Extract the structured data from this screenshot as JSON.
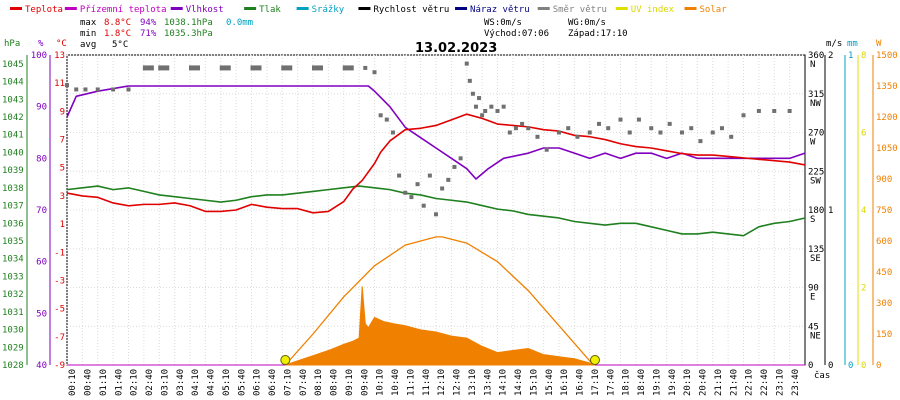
{
  "chart_data": {
    "type": "line",
    "date": "13.02.2023",
    "legend": [
      {
        "id": "temp",
        "label": "Teplota",
        "color": "#e00000"
      },
      {
        "id": "dew",
        "label": "Přízemní teplota",
        "color": "#c000c0"
      },
      {
        "id": "hum",
        "label": "Vlhkost",
        "color": "#8000c0"
      },
      {
        "id": "press",
        "label": "Tlak",
        "color": "#208020"
      },
      {
        "id": "rain",
        "label": "Srážky",
        "color": "#00a0c0"
      },
      {
        "id": "wspd",
        "label": "Rychlost větru",
        "color": "#000000"
      },
      {
        "id": "gust",
        "label": "Náraz větru",
        "color": "#000080"
      },
      {
        "id": "wdir",
        "label": "Směr větru",
        "color": "#808080"
      },
      {
        "id": "uv",
        "label": "UV index",
        "color": "#e0e000"
      },
      {
        "id": "solar",
        "label": "Solar",
        "color": "#f08000"
      }
    ],
    "stats": {
      "max": {
        "label": "max",
        "temp": "8.8°C",
        "hum": "94%",
        "press": "1038.1hPa",
        "rain": "0.0mm"
      },
      "min": {
        "label": "min",
        "temp": "1.8°C",
        "hum": "71%",
        "press": "1035.3hPa"
      },
      "avg": {
        "label": "avg",
        "temp": "5°C"
      }
    },
    "wind_info": {
      "ws": "WS:0m/s",
      "wg": "WG:0m/s",
      "sunrise": "Východ:07:06",
      "sunset": "Západ:17:10"
    },
    "axis_titles": {
      "hpa": "hPa",
      "pct": "%",
      "degc": "°C",
      "ms": "m/s",
      "mm": "mm",
      "w": "W",
      "cas": "čas"
    },
    "axes": {
      "hpa": {
        "ticks": [
          "1045",
          "1044",
          "1043",
          "1042",
          "1041",
          "1040",
          "1039",
          "1038",
          "1037",
          "1036",
          "1035",
          "1034",
          "1033",
          "1032",
          "1031",
          "1030",
          "1029",
          "1028"
        ],
        "range": [
          1028,
          1045.5
        ]
      },
      "pct": {
        "ticks": [
          "100",
          "90",
          "80",
          "70",
          "60",
          "50",
          "40"
        ],
        "range": [
          40,
          100
        ]
      },
      "degc": {
        "ticks": [
          "13",
          "11",
          "9",
          "7",
          "5",
          "3",
          "1",
          "-1",
          "-3",
          "-5",
          "-7",
          "-9"
        ],
        "range": [
          -9,
          13
        ]
      },
      "dir": {
        "ticks": [
          [
            "360",
            "N"
          ],
          [
            "315",
            "NW"
          ],
          [
            "270",
            "W"
          ],
          [
            "225",
            "SW"
          ],
          [
            "180",
            "S"
          ],
          [
            "135",
            "SE"
          ],
          [
            "90",
            "E"
          ],
          [
            "45",
            "NE"
          ],
          [
            "0",
            ""
          ]
        ],
        "range": [
          0,
          360
        ]
      },
      "ms": {
        "ticks": [
          "2",
          "1",
          "0"
        ],
        "range": [
          0,
          2
        ]
      },
      "mm": {
        "ticks": [
          "1",
          "0"
        ],
        "range": [
          0,
          1
        ]
      },
      "uv": {
        "ticks": [
          "8",
          "6",
          "4",
          "2",
          "0"
        ],
        "range": [
          0,
          8
        ]
      },
      "solar": {
        "ticks": [
          "1500",
          "1350",
          "1200",
          "1050",
          "900",
          "750",
          "600",
          "450",
          "300",
          "150",
          "0"
        ],
        "range": [
          0,
          1500
        ]
      }
    },
    "x_labels": [
      "00:10",
      "00:40",
      "01:10",
      "01:40",
      "02:10",
      "02:40",
      "03:10",
      "03:40",
      "04:10",
      "04:40",
      "05:10",
      "05:40",
      "06:10",
      "06:40",
      "07:10",
      "07:40",
      "08:10",
      "08:40",
      "09:10",
      "09:40",
      "10:10",
      "10:40",
      "11:10",
      "11:40",
      "12:10",
      "12:40",
      "13:10",
      "13:40",
      "14:10",
      "14:40",
      "15:10",
      "15:40",
      "16:10",
      "16:40",
      "17:10",
      "17:40",
      "18:10",
      "18:40",
      "19:10",
      "19:40",
      "20:10",
      "20:40",
      "21:10",
      "21:40",
      "22:10",
      "22:40",
      "23:10",
      "23:40"
    ],
    "x_range_hours": [
      0,
      24
    ],
    "sun_markers": [
      7.1,
      17.17
    ],
    "series": {
      "temp": {
        "x": [
          0,
          0.5,
          1,
          1.5,
          2,
          2.5,
          3,
          3.5,
          4,
          4.5,
          5,
          5.5,
          6,
          6.5,
          7,
          7.5,
          8,
          8.5,
          9,
          9.3,
          9.6,
          10,
          10.2,
          10.5,
          11,
          11.5,
          12,
          12.5,
          13,
          13.5,
          14,
          14.5,
          15,
          15.5,
          16,
          16.5,
          17,
          17.5,
          18,
          18.5,
          19,
          19.5,
          20,
          20.5,
          21,
          21.5,
          22,
          22.5,
          23,
          23.5,
          24
        ],
        "y": [
          3.2,
          3.0,
          2.9,
          2.5,
          2.3,
          2.4,
          2.4,
          2.5,
          2.3,
          1.9,
          1.9,
          2.0,
          2.4,
          2.2,
          2.1,
          2.1,
          1.8,
          1.9,
          2.6,
          3.5,
          4.1,
          5.3,
          6.1,
          6.9,
          7.7,
          7.8,
          8.0,
          8.4,
          8.8,
          8.5,
          8.1,
          8.0,
          7.9,
          7.7,
          7.6,
          7.3,
          7.2,
          7.0,
          6.7,
          6.5,
          6.4,
          6.2,
          6.0,
          5.9,
          5.9,
          5.8,
          5.7,
          5.6,
          5.5,
          5.4,
          5.2
        ]
      },
      "hum": {
        "x": [
          0,
          0.3,
          1,
          2,
          2.5,
          4,
          6,
          8,
          9,
          9.8,
          10,
          10.5,
          11,
          11.5,
          12,
          12.5,
          13,
          13.3,
          13.7,
          14.2,
          15,
          15.5,
          16,
          16.5,
          17,
          17.5,
          18,
          18.5,
          19,
          19.5,
          20,
          20.5,
          21,
          21.5,
          22,
          23,
          23.5,
          24
        ],
        "y": [
          88,
          92,
          93,
          94,
          94,
          94,
          94,
          94,
          94,
          94,
          93,
          90,
          86,
          84,
          82,
          80,
          78,
          76,
          78,
          80,
          81,
          82,
          82,
          81,
          80,
          81,
          80,
          81,
          81,
          80,
          81,
          80,
          80,
          80,
          80,
          80,
          80,
          81
        ]
      },
      "press": {
        "x": [
          0,
          0.5,
          1,
          1.5,
          2,
          2.5,
          3,
          3.5,
          4,
          4.5,
          5,
          5.5,
          6,
          6.5,
          7,
          7.5,
          8,
          8.5,
          9,
          9.5,
          10,
          10.5,
          11,
          11.5,
          12,
          12.5,
          13,
          13.5,
          14,
          14.5,
          15,
          15.5,
          16,
          16.5,
          17,
          17.5,
          18,
          18.5,
          19,
          19.5,
          20,
          20.5,
          21,
          21.5,
          22,
          22.5,
          23,
          23.5,
          24
        ],
        "y": [
          1037.9,
          1038.0,
          1038.1,
          1037.9,
          1038.0,
          1037.8,
          1037.6,
          1037.5,
          1037.4,
          1037.3,
          1037.2,
          1037.3,
          1037.5,
          1037.6,
          1037.6,
          1037.7,
          1037.8,
          1037.9,
          1038.0,
          1038.1,
          1038.0,
          1037.9,
          1037.7,
          1037.6,
          1037.4,
          1037.3,
          1037.2,
          1037.0,
          1036.8,
          1036.7,
          1036.5,
          1036.4,
          1036.3,
          1036.1,
          1036.0,
          1035.9,
          1036.0,
          1036.0,
          1035.8,
          1035.6,
          1035.4,
          1035.4,
          1035.5,
          1035.4,
          1035.3,
          1035.8,
          1036.0,
          1036.1,
          1036.3
        ]
      },
      "solar": {
        "x": [
          7.1,
          7.5,
          8,
          8.5,
          9,
          9.3,
          9.5,
          9.6,
          9.7,
          9.8,
          10,
          10.3,
          10.6,
          11,
          11.5,
          12,
          12.5,
          13,
          13.5,
          14,
          14.5,
          15,
          15.5,
          16,
          16.5,
          17,
          17.17
        ],
        "y": [
          0,
          20,
          45,
          70,
          100,
          115,
          130,
          380,
          200,
          180,
          230,
          210,
          200,
          190,
          170,
          160,
          140,
          130,
          90,
          60,
          70,
          80,
          50,
          40,
          30,
          10,
          0
        ]
      },
      "solar_theoretical": {
        "x": [
          7.1,
          8,
          9,
          10,
          11,
          12,
          12.2,
          13,
          14,
          15,
          16,
          17,
          17.17
        ],
        "y": [
          0,
          150,
          330,
          480,
          580,
          620,
          620,
          590,
          500,
          360,
          190,
          20,
          0
        ]
      },
      "wdir": {
        "x": [
          0,
          0.3,
          0.6,
          1,
          1.5,
          2,
          2.5,
          3,
          4,
          5,
          6,
          7,
          8,
          9,
          9.7,
          10,
          10.2,
          10.4,
          10.6,
          10.8,
          11,
          11.2,
          11.4,
          11.6,
          11.8,
          12,
          12.2,
          12.4,
          12.6,
          12.8,
          13,
          13.1,
          13.2,
          13.3,
          13.4,
          13.5,
          13.6,
          13.8,
          14,
          14.2,
          14.4,
          14.6,
          14.8,
          15,
          15.3,
          15.6,
          16,
          16.3,
          16.6,
          17,
          17.3,
          17.6,
          18,
          18.3,
          18.6,
          19,
          19.3,
          19.6,
          20,
          20.3,
          20.6,
          21,
          21.3,
          21.6,
          22,
          22.5,
          23,
          23.5
        ],
        "y": [
          325,
          320,
          320,
          320,
          320,
          320,
          345,
          345,
          345,
          345,
          345,
          345,
          345,
          345,
          345,
          340,
          290,
          285,
          270,
          220,
          200,
          195,
          210,
          185,
          220,
          175,
          205,
          215,
          230,
          240,
          350,
          330,
          315,
          300,
          310,
          290,
          295,
          300,
          295,
          300,
          270,
          275,
          280,
          275,
          265,
          250,
          270,
          275,
          265,
          270,
          280,
          275,
          285,
          270,
          285,
          275,
          270,
          280,
          270,
          275,
          260,
          270,
          275,
          265,
          290,
          295,
          295,
          295
        ]
      }
    }
  }
}
